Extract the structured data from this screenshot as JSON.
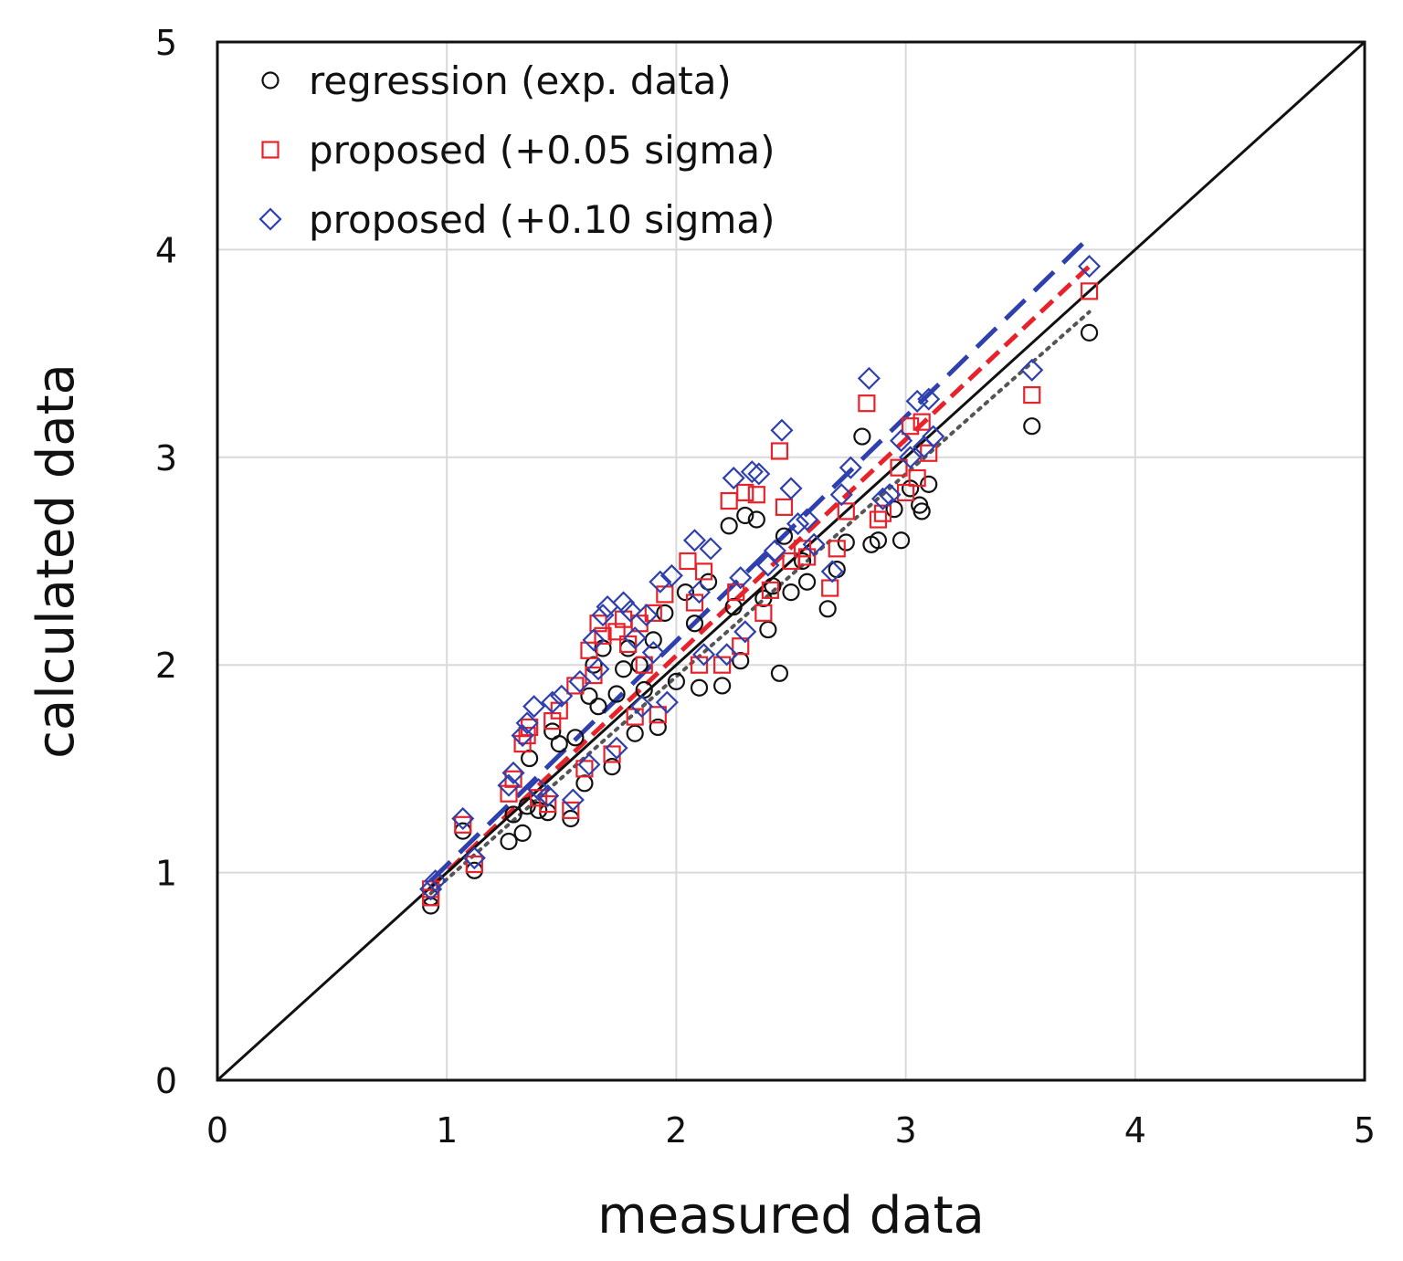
{
  "chart_data": {
    "type": "scatter",
    "title": "",
    "xlabel": "measured data",
    "ylabel": "calculated data",
    "xlim": [
      0,
      5
    ],
    "ylim": [
      0,
      5
    ],
    "xticks": [
      "0",
      "1",
      "2",
      "3",
      "4",
      "5"
    ],
    "yticks": [
      "0",
      "1",
      "2",
      "3",
      "4",
      "5"
    ],
    "grid": true,
    "legend_position": "top-left",
    "reference_line": {
      "from": [
        0,
        0
      ],
      "to": [
        5,
        5
      ]
    },
    "series": [
      {
        "name": "regression (exp. data)",
        "marker": "circle",
        "color": "#111111",
        "points": [
          [
            0.93,
            0.84
          ],
          [
            0.93,
            0.88
          ],
          [
            1.07,
            1.2
          ],
          [
            1.12,
            1.01
          ],
          [
            1.27,
            1.15
          ],
          [
            1.29,
            1.28
          ],
          [
            1.33,
            1.19
          ],
          [
            1.35,
            1.32
          ],
          [
            1.36,
            1.55
          ],
          [
            1.4,
            1.3
          ],
          [
            1.44,
            1.29
          ],
          [
            1.46,
            1.68
          ],
          [
            1.49,
            1.62
          ],
          [
            1.54,
            1.26
          ],
          [
            1.56,
            1.65
          ],
          [
            1.6,
            1.43
          ],
          [
            1.62,
            1.85
          ],
          [
            1.64,
            2.0
          ],
          [
            1.66,
            1.8
          ],
          [
            1.68,
            2.08
          ],
          [
            1.72,
            1.51
          ],
          [
            1.74,
            1.86
          ],
          [
            1.77,
            1.98
          ],
          [
            1.79,
            2.08
          ],
          [
            1.82,
            1.67
          ],
          [
            1.84,
            2.0
          ],
          [
            1.86,
            1.88
          ],
          [
            1.9,
            2.12
          ],
          [
            1.92,
            1.7
          ],
          [
            1.95,
            2.25
          ],
          [
            2.0,
            1.92
          ],
          [
            2.04,
            2.35
          ],
          [
            2.08,
            2.2
          ],
          [
            2.1,
            1.89
          ],
          [
            2.14,
            2.4
          ],
          [
            2.2,
            1.9
          ],
          [
            2.23,
            2.67
          ],
          [
            2.25,
            2.28
          ],
          [
            2.28,
            2.02
          ],
          [
            2.3,
            2.72
          ],
          [
            2.35,
            2.7
          ],
          [
            2.38,
            2.32
          ],
          [
            2.4,
            2.17
          ],
          [
            2.42,
            2.38
          ],
          [
            2.45,
            1.96
          ],
          [
            2.47,
            2.62
          ],
          [
            2.5,
            2.35
          ],
          [
            2.55,
            2.5
          ],
          [
            2.57,
            2.4
          ],
          [
            2.66,
            2.27
          ],
          [
            2.7,
            2.46
          ],
          [
            2.74,
            2.59
          ],
          [
            2.81,
            3.1
          ],
          [
            2.85,
            2.58
          ],
          [
            2.88,
            2.6
          ],
          [
            2.95,
            2.75
          ],
          [
            2.98,
            2.6
          ],
          [
            3.02,
            2.85
          ],
          [
            3.06,
            2.77
          ],
          [
            3.07,
            2.74
          ],
          [
            3.1,
            2.87
          ],
          [
            3.55,
            3.15
          ],
          [
            3.8,
            3.6
          ]
        ]
      },
      {
        "name": "proposed (+0.05 sigma)",
        "marker": "square",
        "color": "#e8222a",
        "points": [
          [
            0.93,
            0.88
          ],
          [
            0.93,
            0.92
          ],
          [
            1.07,
            1.23
          ],
          [
            1.12,
            1.04
          ],
          [
            1.27,
            1.38
          ],
          [
            1.29,
            1.45
          ],
          [
            1.33,
            1.62
          ],
          [
            1.35,
            1.66
          ],
          [
            1.36,
            1.7
          ],
          [
            1.4,
            1.36
          ],
          [
            1.44,
            1.33
          ],
          [
            1.46,
            1.73
          ],
          [
            1.49,
            1.78
          ],
          [
            1.54,
            1.3
          ],
          [
            1.56,
            1.9
          ],
          [
            1.6,
            1.5
          ],
          [
            1.62,
            2.07
          ],
          [
            1.64,
            1.95
          ],
          [
            1.66,
            2.2
          ],
          [
            1.68,
            2.14
          ],
          [
            1.72,
            1.57
          ],
          [
            1.74,
            2.16
          ],
          [
            1.77,
            2.22
          ],
          [
            1.79,
            2.1
          ],
          [
            1.82,
            1.75
          ],
          [
            1.84,
            2.2
          ],
          [
            1.86,
            2.0
          ],
          [
            1.9,
            2.25
          ],
          [
            1.92,
            1.76
          ],
          [
            1.95,
            2.34
          ],
          [
            2.05,
            2.5
          ],
          [
            2.08,
            2.3
          ],
          [
            2.1,
            2.0
          ],
          [
            2.12,
            2.45
          ],
          [
            2.2,
            2.0
          ],
          [
            2.23,
            2.79
          ],
          [
            2.26,
            2.35
          ],
          [
            2.28,
            2.09
          ],
          [
            2.3,
            2.83
          ],
          [
            2.35,
            2.82
          ],
          [
            2.38,
            2.25
          ],
          [
            2.41,
            2.36
          ],
          [
            2.45,
            3.03
          ],
          [
            2.47,
            2.76
          ],
          [
            2.5,
            2.5
          ],
          [
            2.55,
            2.56
          ],
          [
            2.57,
            2.52
          ],
          [
            2.67,
            2.37
          ],
          [
            2.7,
            2.56
          ],
          [
            2.74,
            2.74
          ],
          [
            2.83,
            3.26
          ],
          [
            2.88,
            2.7
          ],
          [
            2.9,
            2.73
          ],
          [
            2.97,
            2.95
          ],
          [
            3.0,
            2.83
          ],
          [
            3.02,
            3.15
          ],
          [
            3.05,
            2.9
          ],
          [
            3.07,
            3.17
          ],
          [
            3.1,
            3.02
          ],
          [
            3.55,
            3.3
          ],
          [
            3.8,
            3.8
          ]
        ]
      },
      {
        "name": "proposed (+0.10 sigma)",
        "marker": "diamond",
        "color": "#2e3fae",
        "points": [
          [
            0.93,
            0.92
          ],
          [
            0.95,
            0.96
          ],
          [
            1.07,
            1.26
          ],
          [
            1.12,
            1.07
          ],
          [
            1.27,
            1.42
          ],
          [
            1.29,
            1.48
          ],
          [
            1.33,
            1.66
          ],
          [
            1.35,
            1.72
          ],
          [
            1.38,
            1.8
          ],
          [
            1.4,
            1.4
          ],
          [
            1.44,
            1.37
          ],
          [
            1.46,
            1.82
          ],
          [
            1.5,
            1.85
          ],
          [
            1.55,
            1.35
          ],
          [
            1.58,
            1.92
          ],
          [
            1.62,
            1.52
          ],
          [
            1.64,
            2.12
          ],
          [
            1.66,
            1.98
          ],
          [
            1.68,
            2.24
          ],
          [
            1.7,
            2.28
          ],
          [
            1.74,
            1.6
          ],
          [
            1.77,
            2.3
          ],
          [
            1.8,
            2.26
          ],
          [
            1.82,
            2.13
          ],
          [
            1.85,
            1.8
          ],
          [
            1.87,
            2.24
          ],
          [
            1.9,
            2.06
          ],
          [
            1.93,
            2.4
          ],
          [
            1.96,
            1.82
          ],
          [
            1.98,
            2.43
          ],
          [
            2.08,
            2.6
          ],
          [
            2.1,
            2.35
          ],
          [
            2.12,
            2.05
          ],
          [
            2.15,
            2.56
          ],
          [
            2.22,
            2.05
          ],
          [
            2.25,
            2.9
          ],
          [
            2.28,
            2.42
          ],
          [
            2.3,
            2.16
          ],
          [
            2.33,
            2.93
          ],
          [
            2.36,
            2.92
          ],
          [
            2.4,
            2.48
          ],
          [
            2.43,
            2.55
          ],
          [
            2.46,
            3.13
          ],
          [
            2.5,
            2.85
          ],
          [
            2.53,
            2.68
          ],
          [
            2.57,
            2.7
          ],
          [
            2.6,
            2.58
          ],
          [
            2.68,
            2.45
          ],
          [
            2.72,
            2.82
          ],
          [
            2.76,
            2.95
          ],
          [
            2.84,
            3.38
          ],
          [
            2.9,
            2.8
          ],
          [
            2.93,
            2.82
          ],
          [
            2.98,
            3.08
          ],
          [
            3.02,
            3.0
          ],
          [
            3.05,
            3.27
          ],
          [
            3.08,
            3.05
          ],
          [
            3.1,
            3.28
          ],
          [
            3.12,
            3.1
          ],
          [
            3.55,
            3.42
          ],
          [
            3.8,
            3.92
          ]
        ]
      }
    ],
    "trendlines": [
      {
        "series": "regression (exp. data)",
        "style": "dotted",
        "color": "#555555",
        "x": [
          0.93,
          3.8
        ],
        "y": [
          0.9,
          3.7
        ]
      },
      {
        "series": "proposed (+0.05 sigma)",
        "style": "dashed",
        "color": "#e8222a",
        "x": [
          0.93,
          3.8
        ],
        "y": [
          0.93,
          3.92
        ]
      },
      {
        "series": "proposed (+0.10 sigma)",
        "style": "long-dashed",
        "color": "#2e3fae",
        "x": [
          0.93,
          3.8
        ],
        "y": [
          0.96,
          4.06
        ]
      }
    ]
  }
}
